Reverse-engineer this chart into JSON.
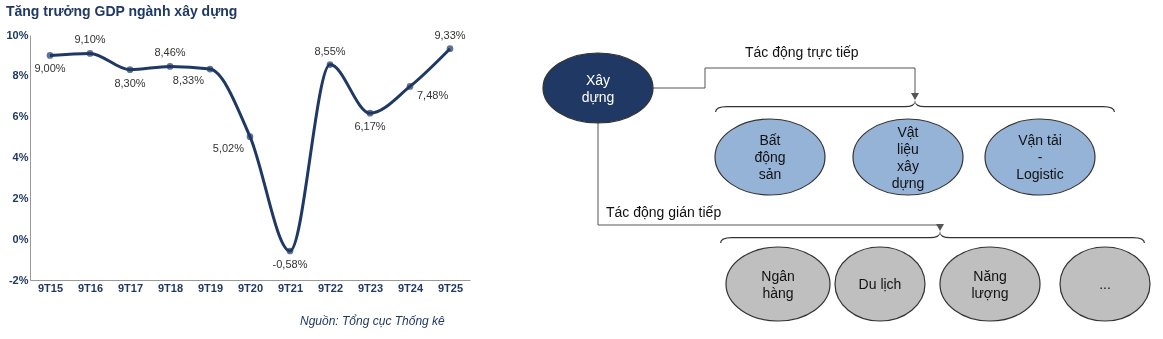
{
  "chart_data": [
    {
      "type": "line",
      "title": "Tăng trưởng GDP ngành xây dựng",
      "categories": [
        "9T15",
        "9T16",
        "9T17",
        "9T18",
        "9T19",
        "9T20",
        "9T21",
        "9T22",
        "9T23",
        "9T24",
        "9T25"
      ],
      "series": [
        {
          "color": "#1f3864",
          "values": [
            9.0,
            9.1,
            8.3,
            8.46,
            8.33,
            5.02,
            -0.58,
            8.55,
            6.17,
            7.48,
            9.33
          ],
          "value_labels": [
            "9,00%",
            "9,10%",
            "8,30%",
            "8,46%",
            "8,33%",
            "5,02%",
            "-0,58%",
            "8,55%",
            "6,17%",
            "7,48%",
            "9,33%"
          ]
        }
      ],
      "ylim": [
        -2,
        10
      ],
      "yticks": [
        {
          "value": -2,
          "label": "-2%"
        },
        {
          "value": 0,
          "label": "0%"
        },
        {
          "value": 2,
          "label": "2%"
        },
        {
          "value": 4,
          "label": "4%"
        },
        {
          "value": 6,
          "label": "6%"
        },
        {
          "value": 8,
          "label": "8%"
        },
        {
          "value": 10,
          "label": "10%"
        }
      ],
      "grid": false,
      "marker": "circle",
      "line_style": "solid",
      "annotations": [
        "Nguồn: Tổng cục Thống kê"
      ]
    },
    {
      "type": "other",
      "annotations": [
        "Xây dựng",
        "Tác động trực tiếp",
        "Bất động sản",
        "Vật liệu xây dựng",
        "Vận tải - Logistic",
        "Tác động gián tiếp",
        "Ngân hàng",
        "Du lịch",
        "Năng lượng",
        "..."
      ]
    }
  ]
}
